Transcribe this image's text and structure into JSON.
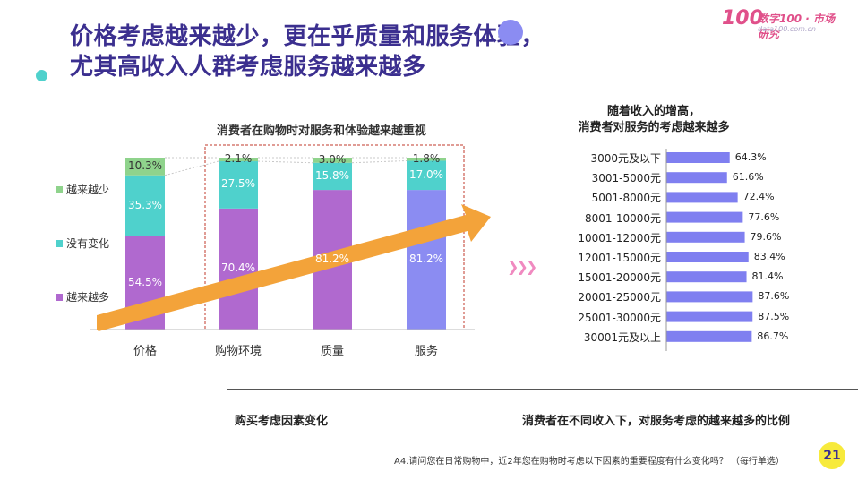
{
  "title_line1": "价格考虑越来越少，更在乎质量和服务体验，",
  "title_line2": "尤其高收入人群考虑服务越来越多",
  "logo": {
    "number": "100",
    "brand": "数字100 · 市场研究",
    "domain": "data100.com.cn"
  },
  "left_chart_title": "消费者在购物时对服务和体验越来越重视",
  "right_chart_title_line1": "随着收入的增高，",
  "right_chart_title_line2": "消费者对服务的考虑越来越多",
  "legend": [
    "越来越少",
    "没有变化",
    "越来越多"
  ],
  "colors": {
    "less": "#8fd38c",
    "same": "#4fd1cc",
    "more": "#b069cf",
    "service_more": "#8b8cf2",
    "arrow": "#f3a33a",
    "rbar": "#7f7ff0",
    "title": "#3b2f8f"
  },
  "chart_data": [
    {
      "type": "bar",
      "stacked": true,
      "title": "消费者在购物时对服务和体验越来越重视",
      "categories": [
        "价格",
        "购物环境",
        "质量",
        "服务"
      ],
      "series": [
        {
          "name": "越来越多",
          "values": [
            54.5,
            70.4,
            81.2,
            81.2
          ]
        },
        {
          "name": "没有变化",
          "values": [
            35.3,
            27.5,
            15.8,
            17.0
          ]
        },
        {
          "name": "越来越少",
          "values": [
            10.3,
            2.1,
            3.0,
            1.8
          ]
        }
      ],
      "value_labels": [
        [
          "54.5%",
          "70.4%",
          "81.2%",
          "81.2%"
        ],
        [
          "35.3%",
          "27.5%",
          "15.8%",
          "17.0%"
        ],
        [
          "10.3%",
          "2.1%",
          "3.0%",
          "1.8%"
        ]
      ],
      "ylim": [
        0,
        100
      ]
    },
    {
      "type": "bar",
      "orientation": "horizontal",
      "title": "随着收入的增高，消费者对服务的考虑越来越多",
      "categories": [
        "3000元及以下",
        "3001-5000元",
        "5001-8000元",
        "8001-10000元",
        "10001-12000元",
        "12001-15000元",
        "15001-20000元",
        "20001-25000元",
        "25001-30000元",
        "30001元及以上"
      ],
      "values": [
        64.3,
        61.6,
        72.4,
        77.6,
        79.6,
        83.4,
        81.4,
        87.6,
        87.5,
        86.7
      ],
      "value_labels": [
        "64.3%",
        "61.6%",
        "72.4%",
        "77.6%",
        "79.6%",
        "83.4%",
        "81.4%",
        "87.6%",
        "87.5%",
        "86.7%"
      ],
      "xlim": [
        0,
        100
      ]
    }
  ],
  "caption_left": "购买考虑因素变化",
  "caption_right": "消费者在不同收入下，对服务考虑的越来越多的比例",
  "footnote": "A4.请问您在日常购物中，近2年您在购物时考虑以下因素的重要程度有什么变化吗？ （每行单选）",
  "page_number": "21"
}
